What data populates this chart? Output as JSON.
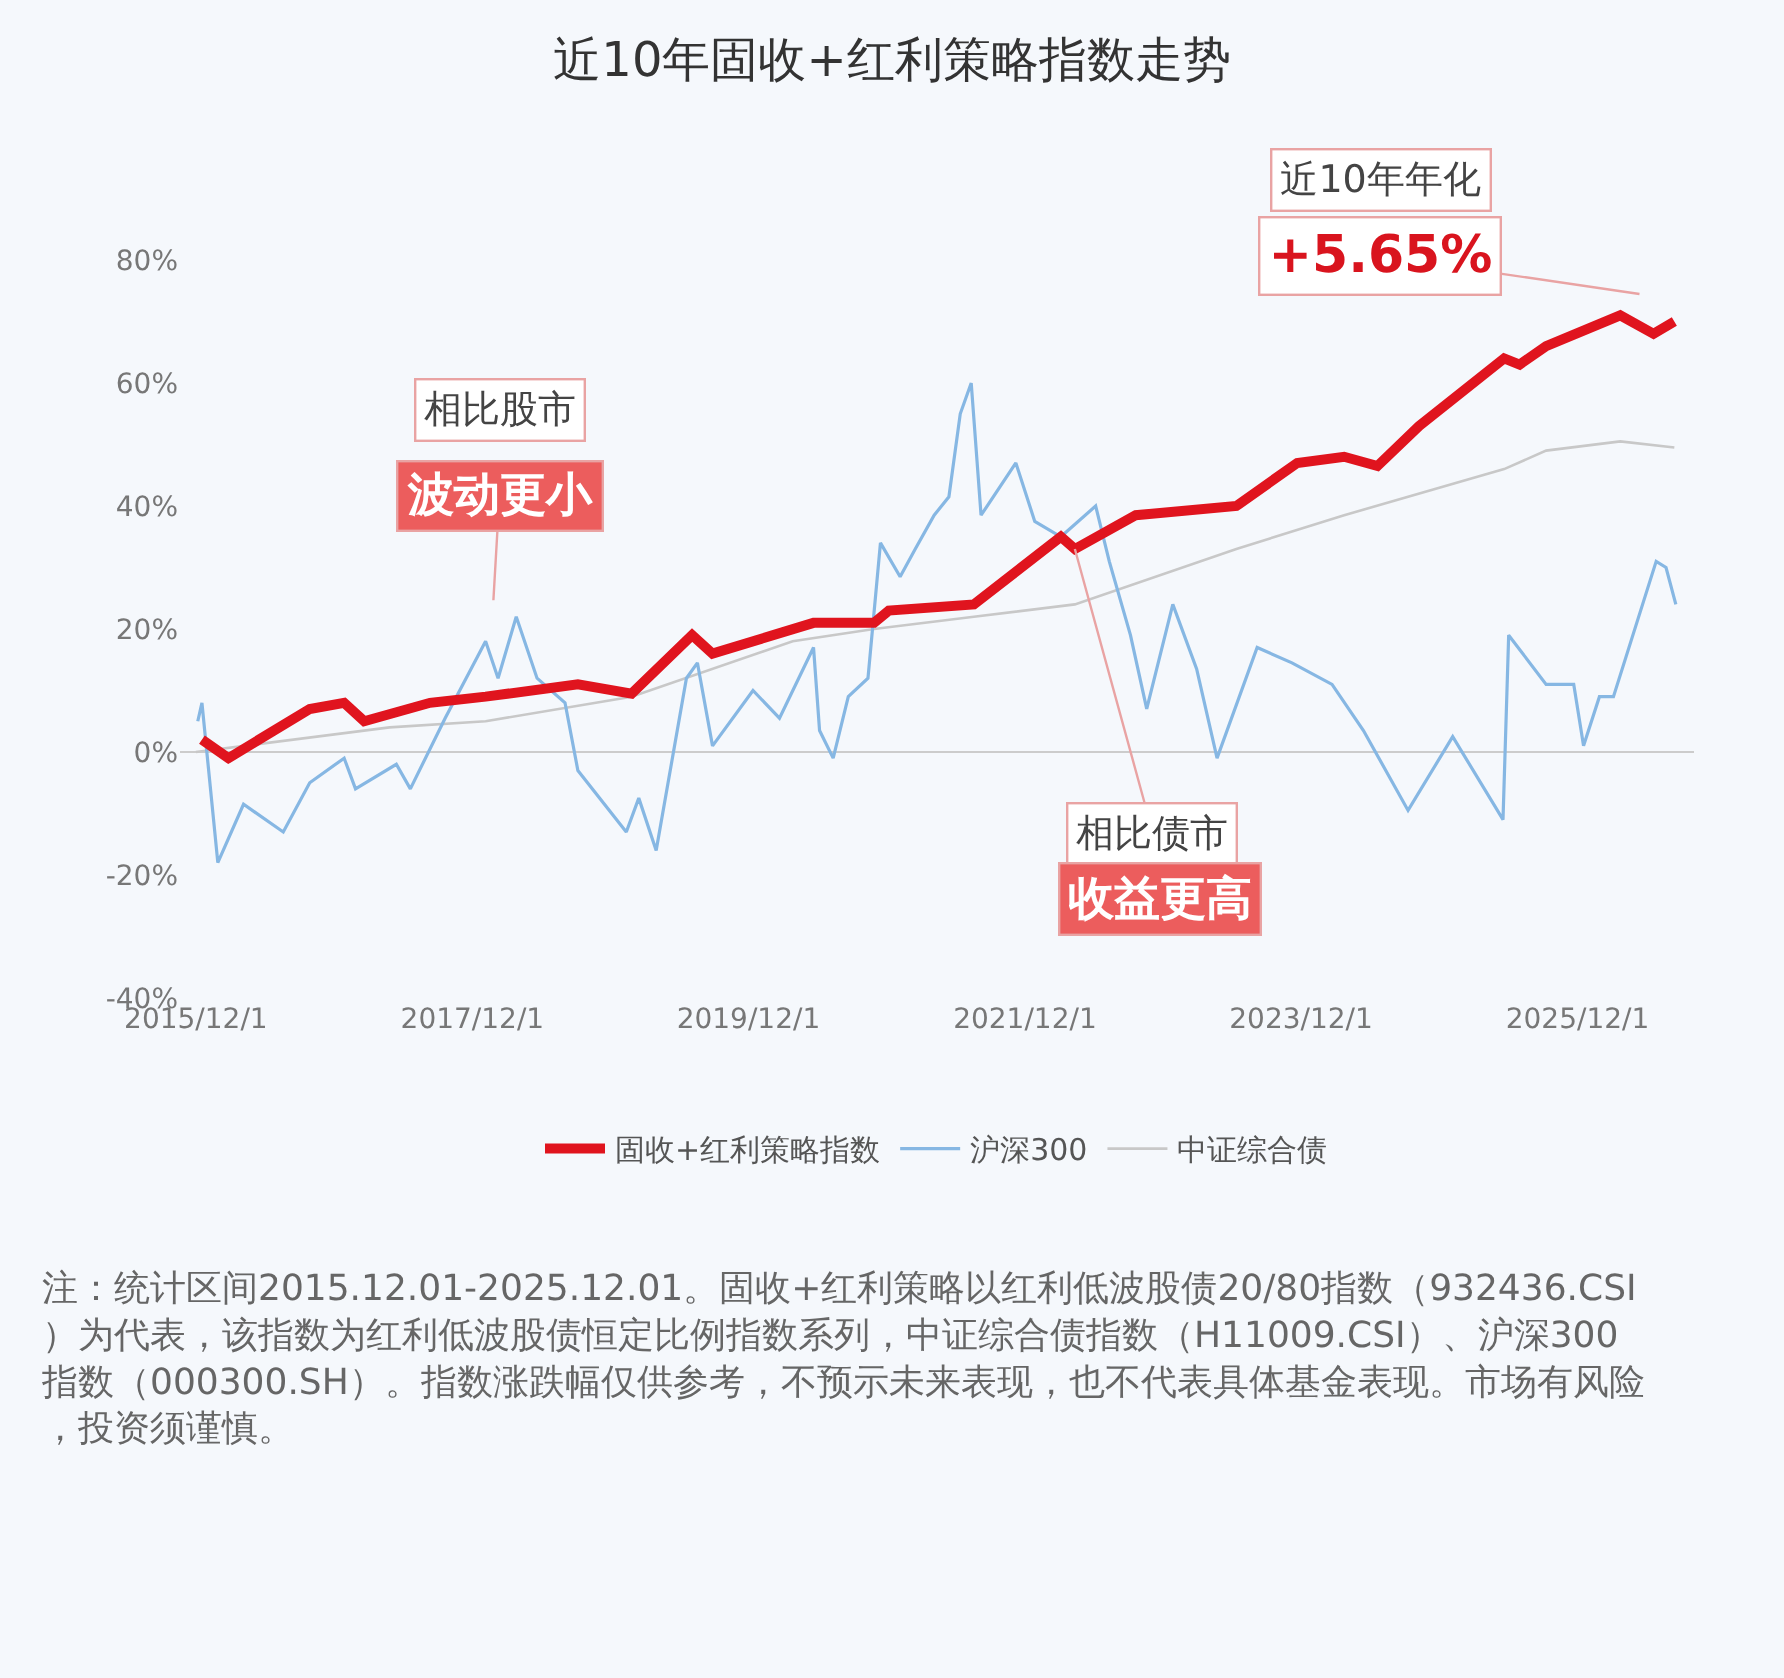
{
  "chart_data": {
    "type": "line",
    "title": "近10年固收+红利策略指数走势",
    "xlim": [
      "2015-10-20",
      "2026-10-05"
    ],
    "xticks": [
      {
        "value": "2015-12-01",
        "label": "2015/12/1"
      },
      {
        "value": "2017-12-01",
        "label": "2017/12/1"
      },
      {
        "value": "2019-12-01",
        "label": "2019/12/1"
      },
      {
        "value": "2021-12-01",
        "label": "2021/12/1"
      },
      {
        "value": "2023-12-01",
        "label": "2023/12/1"
      },
      {
        "value": "2025-12-01",
        "label": "2025/12/1"
      }
    ],
    "ylim": [
      -40,
      80
    ],
    "ref_lines": [
      {
        "axis": "y",
        "value": 0,
        "color": "#cccccc"
      }
    ],
    "yticks": [
      {
        "value": -40,
        "label": "-40%"
      },
      {
        "value": -20,
        "label": "-20%"
      },
      {
        "value": 0,
        "label": "0%"
      },
      {
        "value": 20,
        "label": "20%"
      },
      {
        "value": 40,
        "label": "40%"
      },
      {
        "value": 60,
        "label": "60%"
      },
      {
        "value": 80,
        "label": "80%"
      }
    ],
    "grid": false,
    "legend": "bottom",
    "marker": "none",
    "line_style": "solid",
    "series": [
      {
        "name": "中证综合债",
        "color": "#c8c8c8",
        "x": [
          "2015-12-01",
          "2017-04-26",
          "2018-01-05",
          "2019-01-26",
          "2020-03-27",
          "2020-10-28",
          "2021-07-19",
          "2022-04-12",
          "2023-06-13",
          "2024-03-24",
          "2025-05-21",
          "2025-09-09",
          "2026-03-24",
          "2026-08-14"
        ],
        "values": [
          0,
          4,
          5,
          9,
          18,
          20,
          22,
          24,
          33,
          38.5,
          46,
          49,
          50.5,
          49.5
        ]
      },
      {
        "name": "沪深300",
        "color": "#86b7e3",
        "x": [
          "2015-12-06",
          "2015-12-17",
          "2016-01-28",
          "2016-04-05",
          "2016-07-19",
          "2016-09-27",
          "2016-12-27",
          "2017-01-26",
          "2017-05-14",
          "2017-06-20",
          "2017-09-20",
          "2018-01-05",
          "2018-02-07",
          "2018-03-27",
          "2018-05-21",
          "2018-08-03",
          "2018-09-06",
          "2019-01-12",
          "2019-02-14",
          "2019-04-01",
          "2019-06-20",
          "2019-07-19",
          "2019-08-28",
          "2019-12-13",
          "2020-02-21",
          "2020-05-21",
          "2020-06-06",
          "2020-07-12",
          "2020-08-21",
          "2020-10-12",
          "2020-11-14",
          "2021-01-05",
          "2021-02-14",
          "2021-04-05",
          "2021-05-14",
          "2021-06-13",
          "2021-07-12",
          "2021-08-07",
          "2021-11-07",
          "2021-12-27",
          "2022-03-06",
          "2022-06-06",
          "2022-07-12",
          "2022-09-06",
          "2022-10-19",
          "2022-12-27",
          "2023-02-28",
          "2023-04-23",
          "2023-08-07",
          "2023-11-07",
          "2024-02-21",
          "2024-05-14",
          "2024-09-09",
          "2025-01-05",
          "2025-05-18",
          "2025-06-02",
          "2025-09-09",
          "2025-11-21",
          "2025-12-17",
          "2026-01-28",
          "2026-03-06",
          "2026-06-27",
          "2026-07-23",
          "2026-08-18"
        ],
        "values": [
          5,
          8,
          -18,
          -8.5,
          -13,
          -5,
          -1,
          -6,
          -2,
          -6,
          5.5,
          18,
          12,
          22,
          12,
          8,
          -3,
          -13,
          -7.5,
          -16,
          12,
          14.5,
          1,
          10,
          5.5,
          17,
          3.5,
          -1,
          9,
          12,
          34,
          28.5,
          33,
          38.5,
          41.5,
          55,
          60,
          38.5,
          47,
          37.5,
          35,
          40,
          31,
          19,
          7,
          24,
          13.5,
          -1,
          17,
          14.5,
          11,
          3.5,
          -9.5,
          2.5,
          -11,
          19,
          11,
          11,
          1,
          9,
          9,
          31,
          30,
          24
        ]
      },
      {
        "name": "固收+红利策略指数",
        "color": "#e0141e",
        "x": [
          "2015-12-17",
          "2016-02-25",
          "2016-09-27",
          "2016-12-27",
          "2017-02-18",
          "2017-08-11",
          "2018-01-05",
          "2018-09-06",
          "2019-01-26",
          "2019-07-05",
          "2019-08-28",
          "2020-05-21",
          "2020-10-28",
          "2020-12-06",
          "2021-07-19",
          "2022-03-06",
          "2022-04-12",
          "2022-09-20",
          "2023-06-13",
          "2023-11-21",
          "2024-03-24",
          "2024-06-20",
          "2024-10-08",
          "2025-05-21",
          "2025-07-01",
          "2025-09-09",
          "2026-03-24",
          "2026-06-20",
          "2026-08-14"
        ],
        "values": [
          2,
          -1,
          7,
          8,
          5,
          8,
          9,
          11,
          9.5,
          19,
          16,
          21,
          21,
          23,
          24,
          35,
          33,
          38.5,
          40,
          47,
          48,
          46.5,
          53,
          64,
          63,
          66,
          71,
          68,
          70
        ]
      }
    ],
    "annotations": [
      "相比股市",
      "波动更小",
      {
        "text": "相比债市",
        "x": "2022-04-12",
        "y": 33
      },
      "收益更高",
      "近10年年化",
      "+5.65%",
      "注：统计区间2015.12.01-2025.12.01。固收+红利策略以红利低波股债20/80指数（932436.CSI）为代表，该指数为红利低波股债恒定比例指数系列，中证综合债指数（H11009.CSI）、沪深300指数（000300.SH）。指数涨跌幅仅供参考，不预示未来表现，也不代表具体基金表现。市场有风险，投资须谨慎。"
    ]
  }
}
